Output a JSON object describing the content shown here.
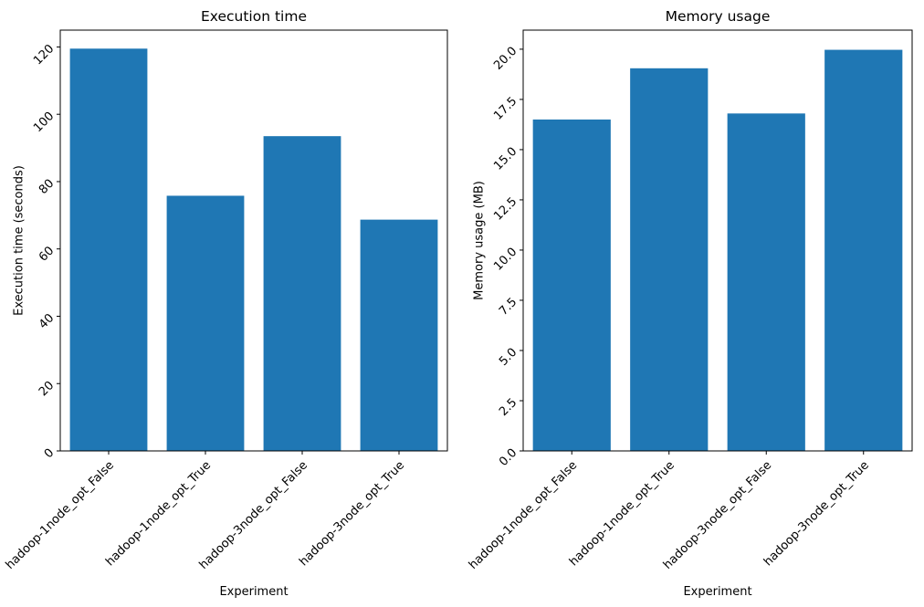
{
  "chart_data": [
    {
      "type": "bar",
      "title": "Execution time",
      "xlabel": "Experiment",
      "ylabel": "Execution time (seconds)",
      "categories": [
        "hadoop-1node_opt_False",
        "hadoop-1node_opt_True",
        "hadoop-3node_opt_False",
        "hadoop-3node_opt_True"
      ],
      "values": [
        119.5,
        75.8,
        93.5,
        68.7
      ],
      "ylim": [
        0,
        125
      ],
      "yticks": [
        0,
        20,
        40,
        60,
        80,
        100,
        120
      ],
      "ytick_labels": [
        "0",
        "20",
        "40",
        "60",
        "80",
        "100",
        "120"
      ],
      "color": "#1f77b4",
      "grid": false
    },
    {
      "type": "bar",
      "title": "Memory usage",
      "xlabel": "Experiment",
      "ylabel": "Memory usage (MB)",
      "categories": [
        "hadoop-1node_opt_False",
        "hadoop-1node_opt_True",
        "hadoop-3node_opt_False",
        "hadoop-3node_opt_True"
      ],
      "values": [
        16.5,
        19.05,
        16.8,
        19.97
      ],
      "ylim": [
        0,
        20.95
      ],
      "yticks": [
        0,
        2.5,
        5,
        7.5,
        10,
        12.5,
        15,
        17.5,
        20
      ],
      "ytick_labels": [
        "0.0",
        "2.5",
        "5.0",
        "7.5",
        "10.0",
        "12.5",
        "15.0",
        "17.5",
        "20.0"
      ],
      "color": "#1f77b4",
      "grid": false
    }
  ]
}
